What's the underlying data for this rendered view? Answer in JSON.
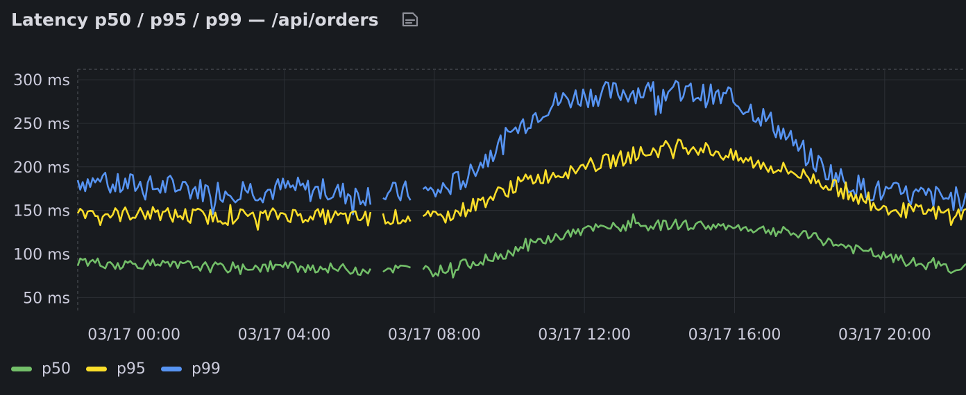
{
  "panel": {
    "title": "Latency p50 / p95 / p99 — /api/orders",
    "description_icon": "document-icon"
  },
  "colors": {
    "p50": "#73bf69",
    "p95": "#fade2a",
    "p99": "#5794f2",
    "grid": "#2c3036",
    "tick": "#ccccdc",
    "background": "#181b1f"
  },
  "chart_data": {
    "type": "line",
    "title": "Latency p50 / p95 / p99 — /api/orders",
    "xlabel": "",
    "ylabel": "",
    "x_axis": "time",
    "x_range": [
      "03/16 22:30",
      "03/17 22:10"
    ],
    "x_ticks": [
      "03/17 00:00",
      "03/17 04:00",
      "03/17 08:00",
      "03/17 12:00",
      "03/17 16:00",
      "03/17 20:00"
    ],
    "y_ticks": [
      "50 ms",
      "100 ms",
      "150 ms",
      "200 ms",
      "250 ms",
      "300 ms"
    ],
    "y_unit": "ms",
    "ylim": [
      32,
      312
    ],
    "grid": true,
    "legend_position": "bottom-left",
    "gaps": [
      [
        "03/17 06:20",
        "03/17 06:35"
      ],
      [
        "03/17 07:25",
        "03/17 07:40"
      ]
    ],
    "x": [
      "03/16 22:30",
      "03/16 23:00",
      "03/16 23:30",
      "03/17 00:00",
      "03/17 00:30",
      "03/17 01:00",
      "03/17 01:30",
      "03/17 02:00",
      "03/17 02:30",
      "03/17 03:00",
      "03/17 03:30",
      "03/17 04:00",
      "03/17 04:30",
      "03/17 05:00",
      "03/17 05:30",
      "03/17 06:00",
      "03/17 06:30",
      "03/17 07:00",
      "03/17 07:30",
      "03/17 08:00",
      "03/17 08:30",
      "03/17 09:00",
      "03/17 09:30",
      "03/17 10:00",
      "03/17 10:30",
      "03/17 11:00",
      "03/17 11:30",
      "03/17 12:00",
      "03/17 12:30",
      "03/17 13:00",
      "03/17 13:30",
      "03/17 14:00",
      "03/17 14:30",
      "03/17 15:00",
      "03/17 15:30",
      "03/17 16:00",
      "03/17 16:30",
      "03/17 17:00",
      "03/17 17:30",
      "03/17 18:00",
      "03/17 18:30",
      "03/17 19:00",
      "03/17 19:30",
      "03/17 20:00",
      "03/17 20:30",
      "03/17 21:00",
      "03/17 21:30",
      "03/17 22:00"
    ],
    "series": [
      {
        "name": "p50",
        "color": "#73bf69",
        "values": [
          92,
          90,
          88,
          89,
          88,
          86,
          87,
          85,
          84,
          86,
          84,
          86,
          85,
          84,
          83,
          82,
          84,
          83,
          83,
          80,
          85,
          90,
          95,
          102,
          110,
          117,
          122,
          127,
          130,
          131,
          132,
          133,
          134,
          133,
          132,
          131,
          129,
          127,
          124,
          120,
          114,
          108,
          102,
          97,
          92,
          88,
          86,
          84
        ]
      },
      {
        "name": "p95",
        "color": "#fade2a",
        "values": [
          150,
          148,
          145,
          147,
          146,
          144,
          145,
          143,
          142,
          145,
          143,
          146,
          144,
          143,
          142,
          141,
          143,
          142,
          143,
          140,
          146,
          155,
          165,
          175,
          185,
          190,
          195,
          200,
          205,
          210,
          215,
          220,
          225,
          222,
          218,
          210,
          205,
          200,
          195,
          188,
          180,
          170,
          160,
          155,
          150,
          148,
          147,
          146
        ]
      },
      {
        "name": "p99",
        "color": "#5794f2",
        "values": [
          185,
          182,
          178,
          180,
          176,
          178,
          175,
          173,
          172,
          175,
          172,
          176,
          174,
          172,
          170,
          168,
          171,
          169,
          172,
          170,
          180,
          195,
          215,
          235,
          255,
          270,
          278,
          282,
          284,
          286,
          287,
          287,
          286,
          284,
          280,
          275,
          265,
          250,
          230,
          210,
          195,
          182,
          175,
          170,
          168,
          166,
          165,
          163
        ]
      }
    ]
  },
  "legend": [
    {
      "label": "p50",
      "color": "#73bf69"
    },
    {
      "label": "p95",
      "color": "#fade2a"
    },
    {
      "label": "p99",
      "color": "#5794f2"
    }
  ]
}
